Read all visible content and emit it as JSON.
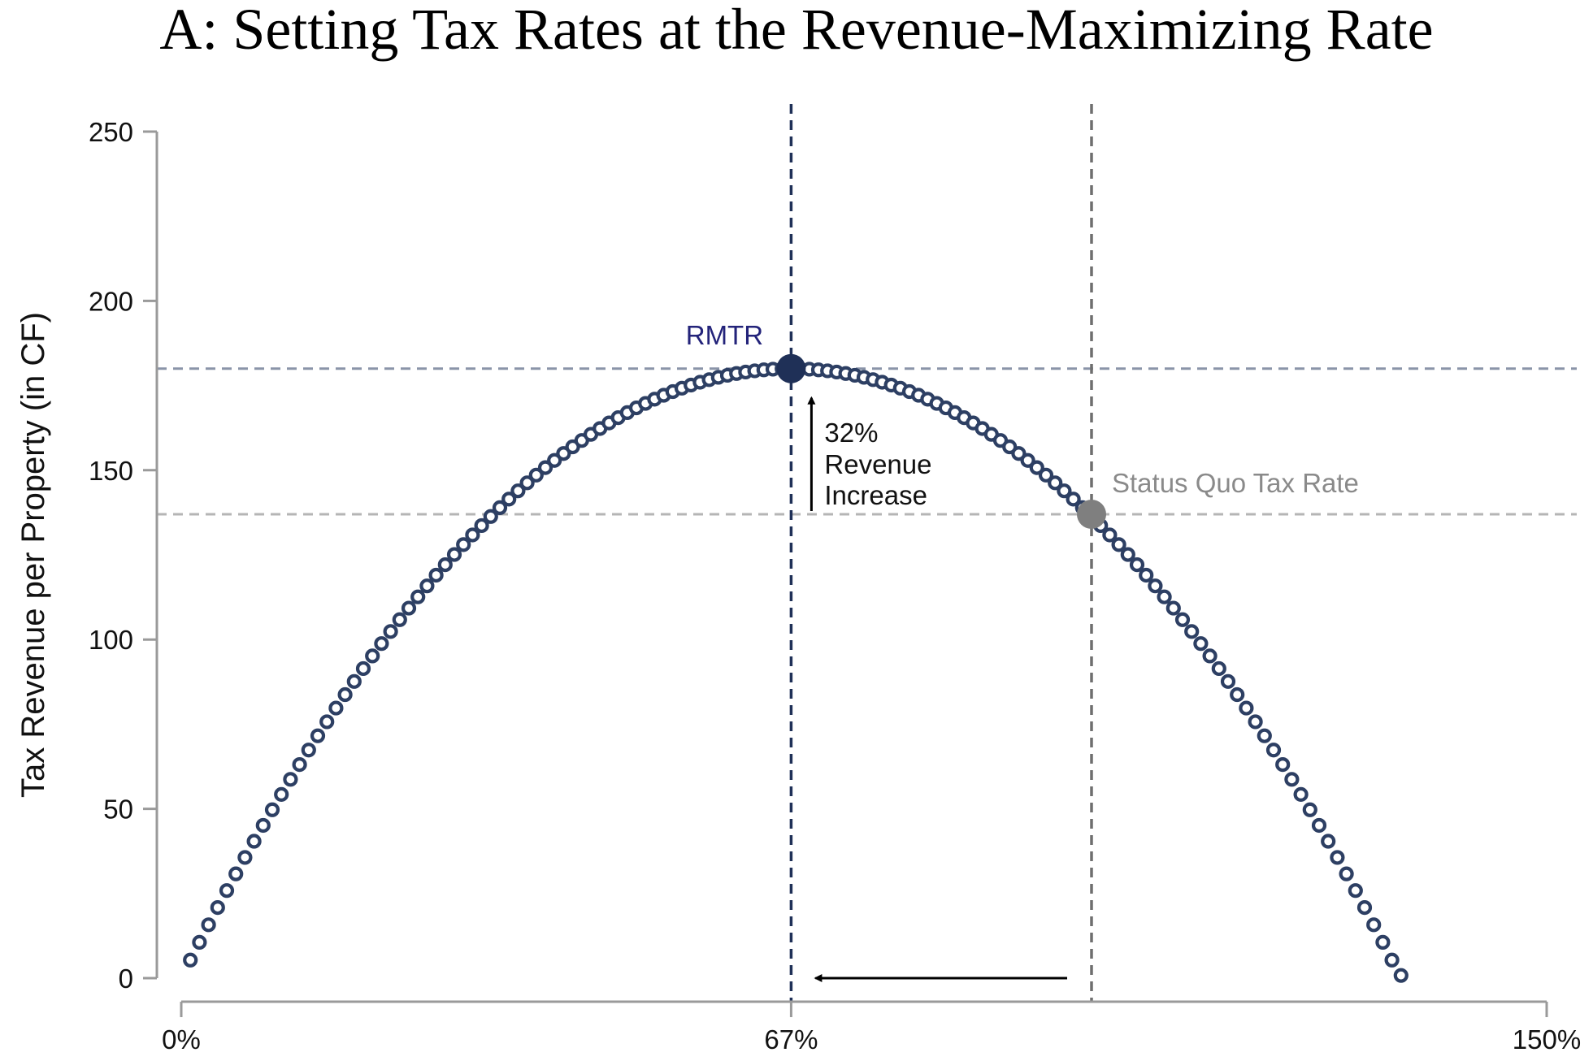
{
  "chart_data": {
    "type": "scatter",
    "title": "A: Setting Tax Rates at the Revenue-Maximizing Rate",
    "xlabel": "",
    "ylabel": "Tax Revenue per Property (in CF)",
    "xlim": [
      0,
      150
    ],
    "ylim": [
      0,
      250
    ],
    "x_ticks": [
      {
        "value": 0,
        "label": "0%"
      },
      {
        "value": 67,
        "label": "67%"
      },
      {
        "value": 150,
        "label": "150%"
      }
    ],
    "y_ticks": [
      0,
      50,
      100,
      150,
      200,
      250
    ],
    "curve": {
      "description": "Laffer curve of tax revenue vs tax rate",
      "x_start": 1,
      "x_end": 134,
      "peak_x": 67,
      "peak_y": 180,
      "color": "#2d3f63"
    },
    "rmtr": {
      "x": 67,
      "y": 180,
      "label": "RMTR",
      "color": "#1f3057",
      "label_color": "#23237a"
    },
    "status_quo": {
      "x": 100,
      "y": 137,
      "label": "Status Quo Tax Rate",
      "color": "#7f7f7f",
      "label_color": "#8a8a8a"
    },
    "revenue_annotation": {
      "lines": [
        "32%",
        "Revenue",
        "Increase"
      ]
    },
    "grid": false,
    "legend": "none"
  }
}
